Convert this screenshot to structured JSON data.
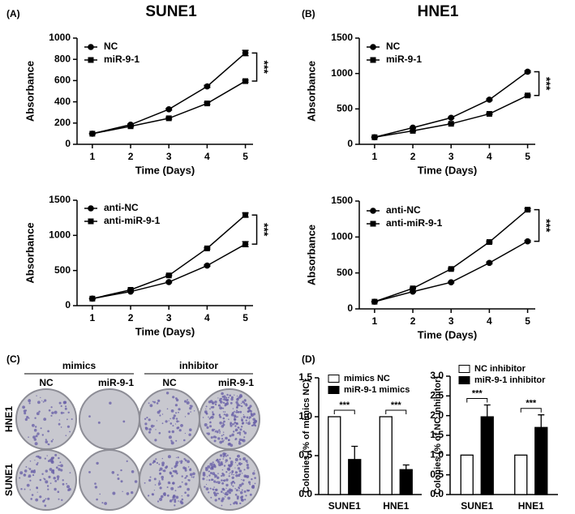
{
  "panels": {
    "A": "(A)",
    "B": "(B)",
    "C": "(C)",
    "D": "(D)"
  },
  "colony_plates": {
    "groups": [
      "mimics",
      "inhibitor"
    ],
    "columns": [
      "NC",
      "miR-9-1",
      "NC",
      "miR-9-1"
    ],
    "rows": [
      "HNE1",
      "SUNE1"
    ]
  },
  "chart_data": [
    {
      "type": "line",
      "title": "SUNE1",
      "xlabel": "Time (Days)",
      "ylabel": "Absorbance",
      "x": [
        1,
        2,
        3,
        4,
        5
      ],
      "xlim": [
        0.6,
        5.2
      ],
      "xticks": [
        1,
        2,
        3,
        4,
        5
      ],
      "ylim": [
        0,
        1000
      ],
      "yticks": [
        0,
        200,
        400,
        600,
        800,
        1000
      ],
      "legend": "upper left",
      "annotation": "***",
      "series": [
        {
          "name": "NC",
          "color": "#000000",
          "marker": "circle",
          "values": [
            100,
            185,
            330,
            545,
            860
          ],
          "errors": [
            3,
            6,
            8,
            10,
            25
          ]
        },
        {
          "name": "miR-9-1",
          "color": "#000000",
          "marker": "square",
          "values": [
            100,
            170,
            245,
            385,
            595
          ],
          "errors": [
            3,
            5,
            7,
            9,
            10
          ]
        }
      ]
    },
    {
      "type": "line",
      "title": "HNE1",
      "xlabel": "Time (Days)",
      "ylabel": "Absorbance",
      "x": [
        1,
        2,
        3,
        4,
        5
      ],
      "xlim": [
        0.6,
        5.2
      ],
      "xticks": [
        1,
        2,
        3,
        4,
        5
      ],
      "ylim": [
        0,
        1500
      ],
      "yticks": [
        0,
        500,
        1000,
        1500
      ],
      "legend": "upper left",
      "annotation": "***",
      "series": [
        {
          "name": "NC",
          "color": "#000000",
          "marker": "circle",
          "values": [
            100,
            235,
            375,
            630,
            1025
          ],
          "errors": [
            3,
            6,
            8,
            10,
            12
          ]
        },
        {
          "name": "miR-9-1",
          "color": "#000000",
          "marker": "square",
          "values": [
            100,
            190,
            290,
            430,
            690
          ],
          "errors": [
            3,
            5,
            7,
            9,
            10
          ]
        }
      ]
    },
    {
      "type": "line",
      "xlabel": "Time (Days)",
      "ylabel": "Absorbance",
      "x": [
        1,
        2,
        3,
        4,
        5
      ],
      "xlim": [
        0.6,
        5.2
      ],
      "xticks": [
        1,
        2,
        3,
        4,
        5
      ],
      "ylim": [
        0,
        1500
      ],
      "yticks": [
        0,
        500,
        1000,
        1500
      ],
      "legend": "upper left",
      "annotation": "***",
      "series": [
        {
          "name": "anti-NC",
          "color": "#000000",
          "marker": "circle",
          "values": [
            100,
            200,
            335,
            570,
            875
          ],
          "errors": [
            3,
            6,
            8,
            10,
            35
          ]
        },
        {
          "name": "anti-miR-9-1",
          "color": "#000000",
          "marker": "square",
          "values": [
            100,
            225,
            430,
            815,
            1290
          ],
          "errors": [
            3,
            6,
            8,
            12,
            30
          ]
        }
      ]
    },
    {
      "type": "line",
      "xlabel": "Time (Days)",
      "ylabel": "Absorbance",
      "x": [
        1,
        2,
        3,
        4,
        5
      ],
      "xlim": [
        0.6,
        5.2
      ],
      "xticks": [
        1,
        2,
        3,
        4,
        5
      ],
      "ylim": [
        0,
        1500
      ],
      "yticks": [
        0,
        500,
        1000,
        1500
      ],
      "legend": "upper left",
      "annotation": "***",
      "series": [
        {
          "name": "anti-NC",
          "color": "#000000",
          "marker": "circle",
          "values": [
            100,
            240,
            370,
            640,
            940
          ],
          "errors": [
            3,
            6,
            8,
            12,
            12
          ]
        },
        {
          "name": "anti-miR-9-1",
          "color": "#000000",
          "marker": "square",
          "values": [
            100,
            285,
            555,
            930,
            1380
          ],
          "errors": [
            3,
            6,
            10,
            12,
            15
          ]
        }
      ]
    },
    {
      "type": "bar",
      "ylabel": "Colonies (% of mimics NC)",
      "categories": [
        "SUNE1",
        "HNE1"
      ],
      "ylim": [
        0,
        1.5
      ],
      "yticks": [
        {
          "value": 0,
          "label": "0.0"
        },
        0.5,
        {
          "value": 1,
          "label": "1.0"
        },
        1.5
      ],
      "annotations": [
        "***",
        "***"
      ],
      "series": [
        {
          "name": "mimics NC",
          "color": "#ffffff",
          "values": [
            1.0,
            1.0
          ],
          "errors": [
            0,
            0
          ]
        },
        {
          "name": "miR-9-1 mimics",
          "color": "#000000",
          "values": [
            0.45,
            0.32
          ],
          "errors": [
            0.17,
            0.06
          ]
        }
      ]
    },
    {
      "type": "bar",
      "ylabel": "Colonies (% of NC inhibitor)",
      "categories": [
        "SUNE1",
        "HNE1"
      ],
      "ylim": [
        0,
        3
      ],
      "yticks": [
        {
          "value": 0,
          "label": "0.0"
        },
        0.5,
        {
          "value": 1,
          "label": "1.0"
        },
        1.5,
        {
          "value": 2,
          "label": "2.0"
        },
        2.5,
        {
          "value": 3,
          "label": "3.0"
        }
      ],
      "annotations": [
        "***",
        "***"
      ],
      "series": [
        {
          "name": "NC inhibitor",
          "color": "#ffffff",
          "values": [
            1.0,
            1.0
          ],
          "errors": [
            0,
            0
          ]
        },
        {
          "name": "miR-9-1 inhibitor",
          "color": "#000000",
          "values": [
            1.97,
            1.7
          ],
          "errors": [
            0.3,
            0.32
          ]
        }
      ]
    }
  ]
}
